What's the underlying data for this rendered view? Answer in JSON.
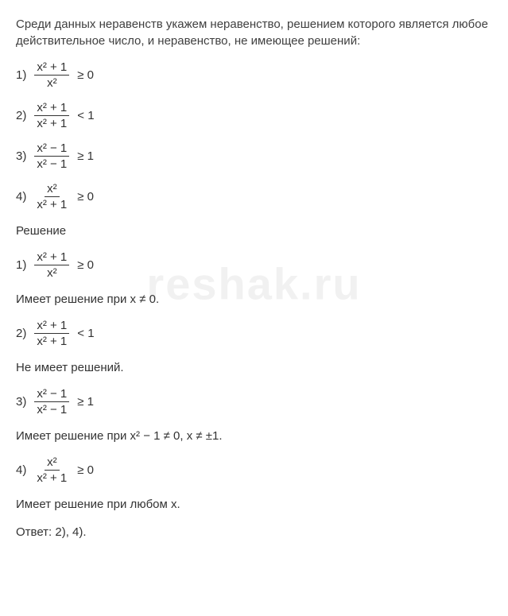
{
  "intro": "Среди данных неравенств укажем неравенство, решением которого является любое действительное число, и неравенство, не имеющее решений:",
  "items": [
    {
      "num": "1)",
      "top": "x² + 1",
      "bot": "x²",
      "rel": "≥ 0"
    },
    {
      "num": "2)",
      "top": "x² + 1",
      "bot": "x² + 1",
      "rel": "< 1"
    },
    {
      "num": "3)",
      "top": "x² − 1",
      "bot": "x² − 1",
      "rel": "≥ 1"
    },
    {
      "num": "4)",
      "top": "x²",
      "bot": "x² + 1",
      "rel": "≥ 0"
    }
  ],
  "solution_label": "Решение",
  "sol": [
    {
      "num": "1)",
      "top": "x² + 1",
      "bot": "x²",
      "rel": "≥ 0",
      "text": "Имеет решение при x ≠ 0."
    },
    {
      "num": "2)",
      "top": "x² + 1",
      "bot": "x² + 1",
      "rel": "< 1",
      "text": "Не имеет решений."
    },
    {
      "num": "3)",
      "top": "x² − 1",
      "bot": "x² − 1",
      "rel": "≥ 1",
      "text": "Имеет решение при x² − 1 ≠ 0, x ≠ ±1."
    },
    {
      "num": "4)",
      "top": "x²",
      "bot": "x² + 1",
      "rel": "≥ 0",
      "text": "Имеет решение при любом x."
    }
  ],
  "answer": "Ответ: 2), 4).",
  "watermark": "reshak.ru"
}
